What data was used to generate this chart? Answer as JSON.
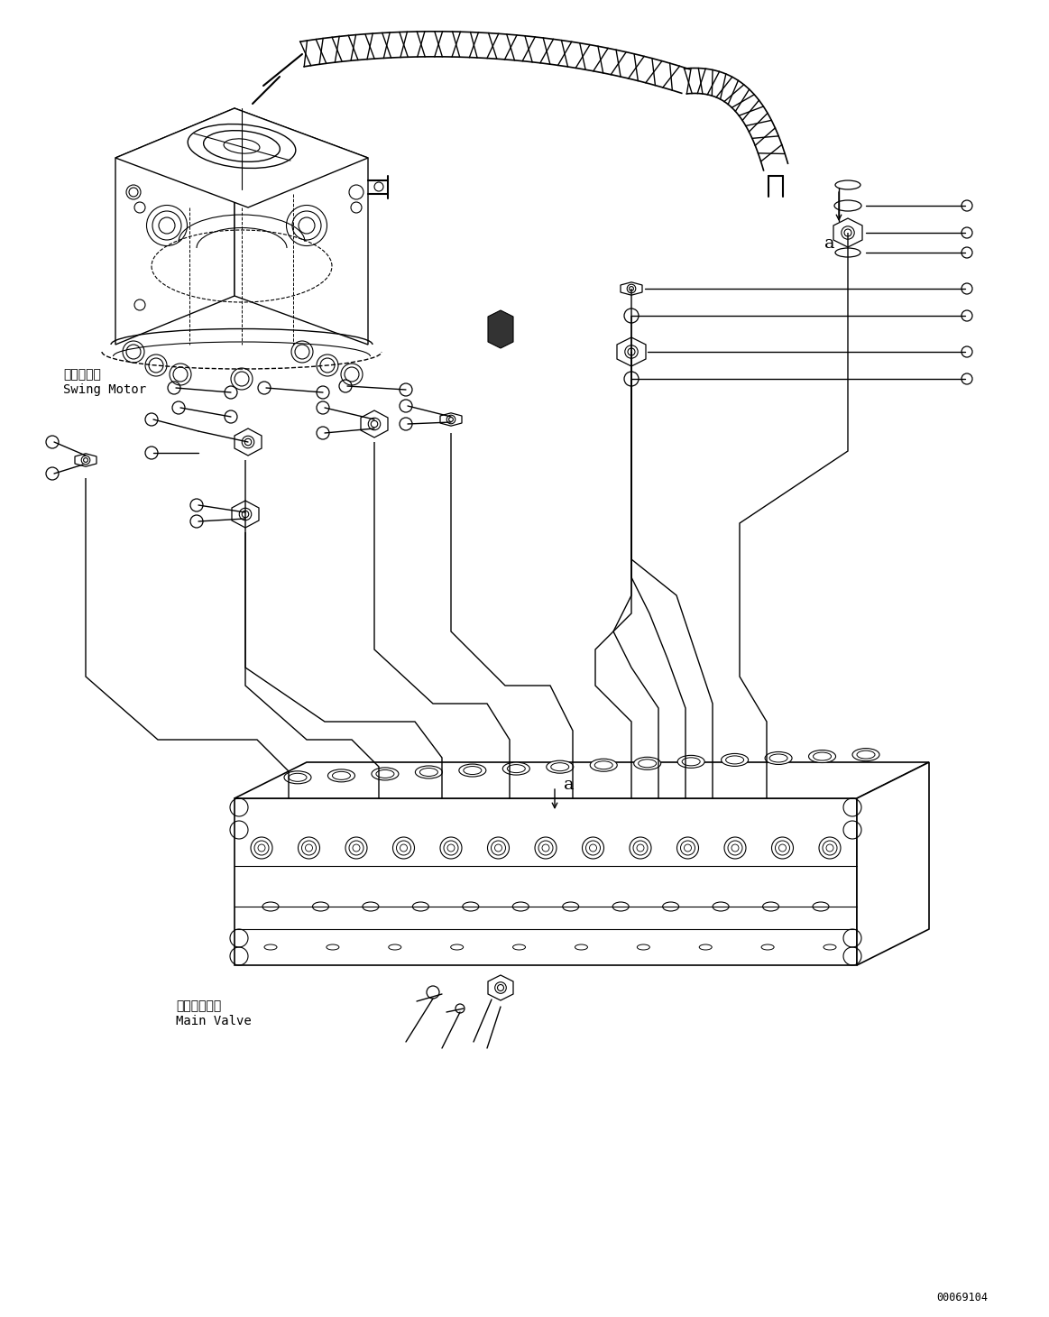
{
  "background_color": "#ffffff",
  "line_color": "#000000",
  "line_width": 1.0,
  "diagram_id": "00069104",
  "labels": {
    "swing_motor_jp": "旋回モータ",
    "swing_motor_en": "Swing Motor",
    "main_valve_jp": "メインバルブ",
    "main_valve_en": "Main Valve",
    "label_a": "a"
  },
  "fig_width": 11.63,
  "fig_height": 14.6,
  "dpi": 100
}
